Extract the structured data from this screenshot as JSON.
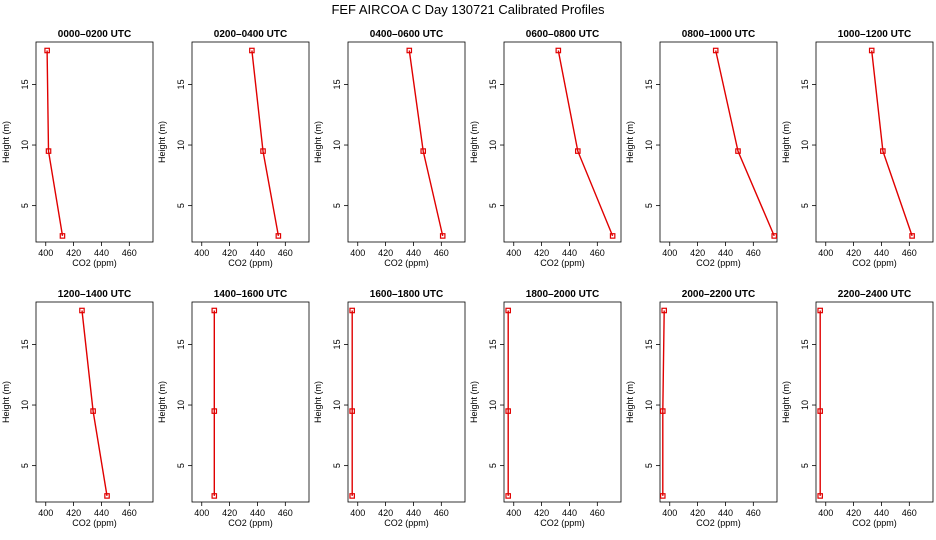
{
  "title": "FEF AIRCOA C  Day 130721  Calibrated Profiles",
  "colors": {
    "series": "#e00000",
    "axis": "#000000"
  },
  "chart_data": [
    {
      "type": "line",
      "title": "0000–0200 UTC",
      "xlabel": "CO2 (ppm)",
      "ylabel": "Height (m)",
      "xlim": [
        393,
        477
      ],
      "ylim": [
        2,
        18.5
      ],
      "xticks": [
        400,
        420,
        440,
        460
      ],
      "yticks": [
        5,
        10,
        15
      ],
      "series": [
        {
          "x": [
            412,
            402,
            401
          ],
          "y": [
            2.5,
            9.5,
            17.8
          ]
        }
      ]
    },
    {
      "type": "line",
      "title": "0200–0400 UTC",
      "xlabel": "CO2 (ppm)",
      "ylabel": "Height (m)",
      "xlim": [
        393,
        477
      ],
      "ylim": [
        2,
        18.5
      ],
      "xticks": [
        400,
        420,
        440,
        460
      ],
      "yticks": [
        5,
        10,
        15
      ],
      "series": [
        {
          "x": [
            455,
            444,
            436
          ],
          "y": [
            2.5,
            9.5,
            17.8
          ]
        }
      ]
    },
    {
      "type": "line",
      "title": "0400–0600 UTC",
      "xlabel": "CO2 (ppm)",
      "ylabel": "Height (m)",
      "xlim": [
        393,
        477
      ],
      "ylim": [
        2,
        18.5
      ],
      "xticks": [
        400,
        420,
        440,
        460
      ],
      "yticks": [
        5,
        10,
        15
      ],
      "series": [
        {
          "x": [
            461,
            447,
            437
          ],
          "y": [
            2.5,
            9.5,
            17.8
          ]
        }
      ]
    },
    {
      "type": "line",
      "title": "0600–0800 UTC",
      "xlabel": "CO2 (ppm)",
      "ylabel": "Height (m)",
      "xlim": [
        393,
        477
      ],
      "ylim": [
        2,
        18.5
      ],
      "xticks": [
        400,
        420,
        440,
        460
      ],
      "yticks": [
        5,
        10,
        15
      ],
      "series": [
        {
          "x": [
            471,
            446,
            432
          ],
          "y": [
            2.5,
            9.5,
            17.8
          ]
        }
      ]
    },
    {
      "type": "line",
      "title": "0800–1000 UTC",
      "xlabel": "CO2 (ppm)",
      "ylabel": "Height (m)",
      "xlim": [
        393,
        477
      ],
      "ylim": [
        2,
        18.5
      ],
      "xticks": [
        400,
        420,
        440,
        460
      ],
      "yticks": [
        5,
        10,
        15
      ],
      "series": [
        {
          "x": [
            475,
            449,
            433
          ],
          "y": [
            2.5,
            9.5,
            17.8
          ]
        }
      ]
    },
    {
      "type": "line",
      "title": "1000–1200 UTC",
      "xlabel": "CO2 (ppm)",
      "ylabel": "Height (m)",
      "xlim": [
        393,
        477
      ],
      "ylim": [
        2,
        18.5
      ],
      "xticks": [
        400,
        420,
        440,
        460
      ],
      "yticks": [
        5,
        10,
        15
      ],
      "series": [
        {
          "x": [
            462,
            441,
            433
          ],
          "y": [
            2.5,
            9.5,
            17.8
          ]
        }
      ]
    },
    {
      "type": "line",
      "title": "1200–1400 UTC",
      "xlabel": "CO2 (ppm)",
      "ylabel": "Height (m)",
      "xlim": [
        393,
        477
      ],
      "ylim": [
        2,
        18.5
      ],
      "xticks": [
        400,
        420,
        440,
        460
      ],
      "yticks": [
        5,
        10,
        15
      ],
      "series": [
        {
          "x": [
            444,
            434,
            426
          ],
          "y": [
            2.5,
            9.5,
            17.8
          ]
        }
      ]
    },
    {
      "type": "line",
      "title": "1400–1600 UTC",
      "xlabel": "CO2 (ppm)",
      "ylabel": "Height (m)",
      "xlim": [
        393,
        477
      ],
      "ylim": [
        2,
        18.5
      ],
      "xticks": [
        400,
        420,
        440,
        460
      ],
      "yticks": [
        5,
        10,
        15
      ],
      "series": [
        {
          "x": [
            409,
            409,
            409
          ],
          "y": [
            2.5,
            9.5,
            17.8
          ]
        }
      ]
    },
    {
      "type": "line",
      "title": "1600–1800 UTC",
      "xlabel": "CO2 (ppm)",
      "ylabel": "Height (m)",
      "xlim": [
        393,
        477
      ],
      "ylim": [
        2,
        18.5
      ],
      "xticks": [
        400,
        420,
        440,
        460
      ],
      "yticks": [
        5,
        10,
        15
      ],
      "series": [
        {
          "x": [
            396,
            396,
            396
          ],
          "y": [
            2.5,
            9.5,
            17.8
          ]
        }
      ]
    },
    {
      "type": "line",
      "title": "1800–2000 UTC",
      "xlabel": "CO2 (ppm)",
      "ylabel": "Height (m)",
      "xlim": [
        393,
        477
      ],
      "ylim": [
        2,
        18.5
      ],
      "xticks": [
        400,
        420,
        440,
        460
      ],
      "yticks": [
        5,
        10,
        15
      ],
      "series": [
        {
          "x": [
            396,
            396,
            396
          ],
          "y": [
            2.5,
            9.5,
            17.8
          ]
        }
      ]
    },
    {
      "type": "line",
      "title": "2000–2200 UTC",
      "xlabel": "CO2 (ppm)",
      "ylabel": "Height (m)",
      "xlim": [
        393,
        477
      ],
      "ylim": [
        2,
        18.5
      ],
      "xticks": [
        400,
        420,
        440,
        460
      ],
      "yticks": [
        5,
        10,
        15
      ],
      "series": [
        {
          "x": [
            395,
            395,
            396
          ],
          "y": [
            2.5,
            9.5,
            17.8
          ]
        }
      ]
    },
    {
      "type": "line",
      "title": "2200–2400 UTC",
      "xlabel": "CO2 (ppm)",
      "ylabel": "Height (m)",
      "xlim": [
        393,
        477
      ],
      "ylim": [
        2,
        18.5
      ],
      "xticks": [
        400,
        420,
        440,
        460
      ],
      "yticks": [
        5,
        10,
        15
      ],
      "series": [
        {
          "x": [
            396,
            396,
            396
          ],
          "y": [
            2.5,
            9.5,
            17.8
          ]
        }
      ]
    }
  ]
}
